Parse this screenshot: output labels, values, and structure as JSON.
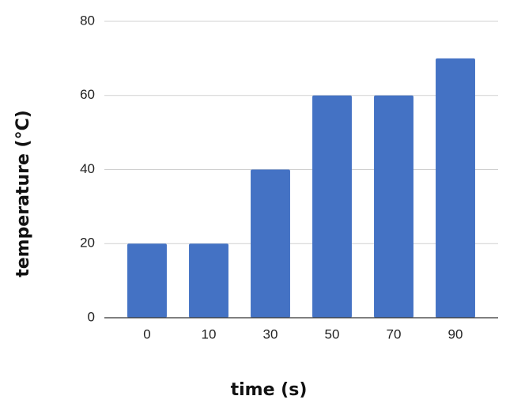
{
  "chart_data": {
    "type": "bar",
    "x_label": "time (s)",
    "y_label": "temperature (°C)",
    "categories": [
      "0",
      "10",
      "30",
      "50",
      "70",
      "90"
    ],
    "values": [
      20,
      20,
      40,
      60,
      60,
      70
    ],
    "color": "#4472c4",
    "ylim": [
      0,
      80
    ],
    "yticks": [
      0,
      20,
      40,
      60,
      80
    ],
    "grid": true
  }
}
